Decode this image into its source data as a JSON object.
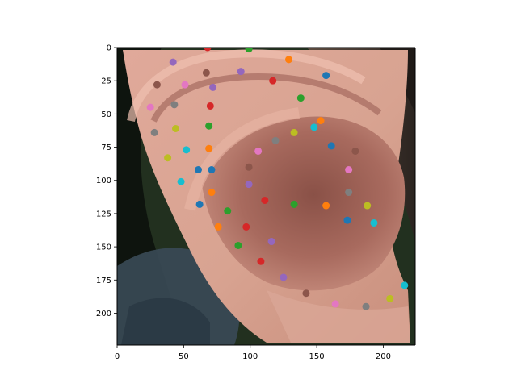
{
  "chart_data": {
    "type": "scatter",
    "title": "",
    "xlabel": "",
    "ylabel": "",
    "xlim": [
      0,
      224
    ],
    "ylim": [
      224,
      0
    ],
    "y_axis_inverted": true,
    "background": "image of a human ear (right ear, side view) with hair above and dark background behind",
    "xticks": [
      0,
      50,
      100,
      150,
      200
    ],
    "yticks": [
      0,
      25,
      50,
      75,
      100,
      125,
      150,
      175,
      200
    ],
    "marker_colors_cycle": [
      "#1f77b4",
      "#ff7f0e",
      "#2ca02c",
      "#d62728",
      "#9467bd",
      "#8c564b",
      "#e377c2",
      "#7f7f7f",
      "#bcbd22",
      "#17becf"
    ],
    "points": [
      {
        "x": 68,
        "y": 0,
        "color": "#d62728"
      },
      {
        "x": 99,
        "y": 1,
        "color": "#2ca02c"
      },
      {
        "x": 129,
        "y": 9,
        "color": "#ff7f0e"
      },
      {
        "x": 157,
        "y": 21,
        "color": "#1f77b4"
      },
      {
        "x": 42,
        "y": 11,
        "color": "#9467bd"
      },
      {
        "x": 67,
        "y": 19,
        "color": "#8c564b"
      },
      {
        "x": 93,
        "y": 18,
        "color": "#9467bd"
      },
      {
        "x": 117,
        "y": 25,
        "color": "#d62728"
      },
      {
        "x": 30,
        "y": 28,
        "color": "#8c564b"
      },
      {
        "x": 51,
        "y": 28,
        "color": "#e377c2"
      },
      {
        "x": 72,
        "y": 30,
        "color": "#9467bd"
      },
      {
        "x": 138,
        "y": 38,
        "color": "#2ca02c"
      },
      {
        "x": 25,
        "y": 45,
        "color": "#e377c2"
      },
      {
        "x": 43,
        "y": 43,
        "color": "#7f7f7f"
      },
      {
        "x": 70,
        "y": 44,
        "color": "#d62728"
      },
      {
        "x": 153,
        "y": 55,
        "color": "#ff7f0e"
      },
      {
        "x": 28,
        "y": 64,
        "color": "#7f7f7f"
      },
      {
        "x": 44,
        "y": 61,
        "color": "#bcbd22"
      },
      {
        "x": 69,
        "y": 59,
        "color": "#2ca02c"
      },
      {
        "x": 133,
        "y": 64,
        "color": "#bcbd22"
      },
      {
        "x": 148,
        "y": 60,
        "color": "#17becf"
      },
      {
        "x": 119,
        "y": 70,
        "color": "#7f7f7f"
      },
      {
        "x": 161,
        "y": 74,
        "color": "#1f77b4"
      },
      {
        "x": 179,
        "y": 78,
        "color": "#8c564b"
      },
      {
        "x": 38,
        "y": 83,
        "color": "#bcbd22"
      },
      {
        "x": 52,
        "y": 77,
        "color": "#17becf"
      },
      {
        "x": 69,
        "y": 76,
        "color": "#ff7f0e"
      },
      {
        "x": 106,
        "y": 78,
        "color": "#e377c2"
      },
      {
        "x": 61,
        "y": 92,
        "color": "#1f77b4"
      },
      {
        "x": 71,
        "y": 92,
        "color": "#1f77b4"
      },
      {
        "x": 99,
        "y": 90,
        "color": "#8c564b"
      },
      {
        "x": 174,
        "y": 92,
        "color": "#e377c2"
      },
      {
        "x": 48,
        "y": 101,
        "color": "#17becf"
      },
      {
        "x": 99,
        "y": 103,
        "color": "#9467bd"
      },
      {
        "x": 71,
        "y": 109,
        "color": "#ff7f0e"
      },
      {
        "x": 111,
        "y": 115,
        "color": "#d62728"
      },
      {
        "x": 174,
        "y": 109,
        "color": "#7f7f7f"
      },
      {
        "x": 62,
        "y": 118,
        "color": "#1f77b4"
      },
      {
        "x": 83,
        "y": 123,
        "color": "#2ca02c"
      },
      {
        "x": 133,
        "y": 118,
        "color": "#2ca02c"
      },
      {
        "x": 157,
        "y": 119,
        "color": "#ff7f0e"
      },
      {
        "x": 188,
        "y": 119,
        "color": "#bcbd22"
      },
      {
        "x": 173,
        "y": 130,
        "color": "#1f77b4"
      },
      {
        "x": 193,
        "y": 132,
        "color": "#17becf"
      },
      {
        "x": 76,
        "y": 135,
        "color": "#ff7f0e"
      },
      {
        "x": 97,
        "y": 135,
        "color": "#d62728"
      },
      {
        "x": 116,
        "y": 146,
        "color": "#9467bd"
      },
      {
        "x": 91,
        "y": 149,
        "color": "#2ca02c"
      },
      {
        "x": 108,
        "y": 161,
        "color": "#d62728"
      },
      {
        "x": 125,
        "y": 173,
        "color": "#9467bd"
      },
      {
        "x": 216,
        "y": 179,
        "color": "#17becf"
      },
      {
        "x": 142,
        "y": 185,
        "color": "#8c564b"
      },
      {
        "x": 205,
        "y": 189,
        "color": "#bcbd22"
      },
      {
        "x": 164,
        "y": 193,
        "color": "#e377c2"
      },
      {
        "x": 187,
        "y": 195,
        "color": "#7f7f7f"
      }
    ]
  }
}
